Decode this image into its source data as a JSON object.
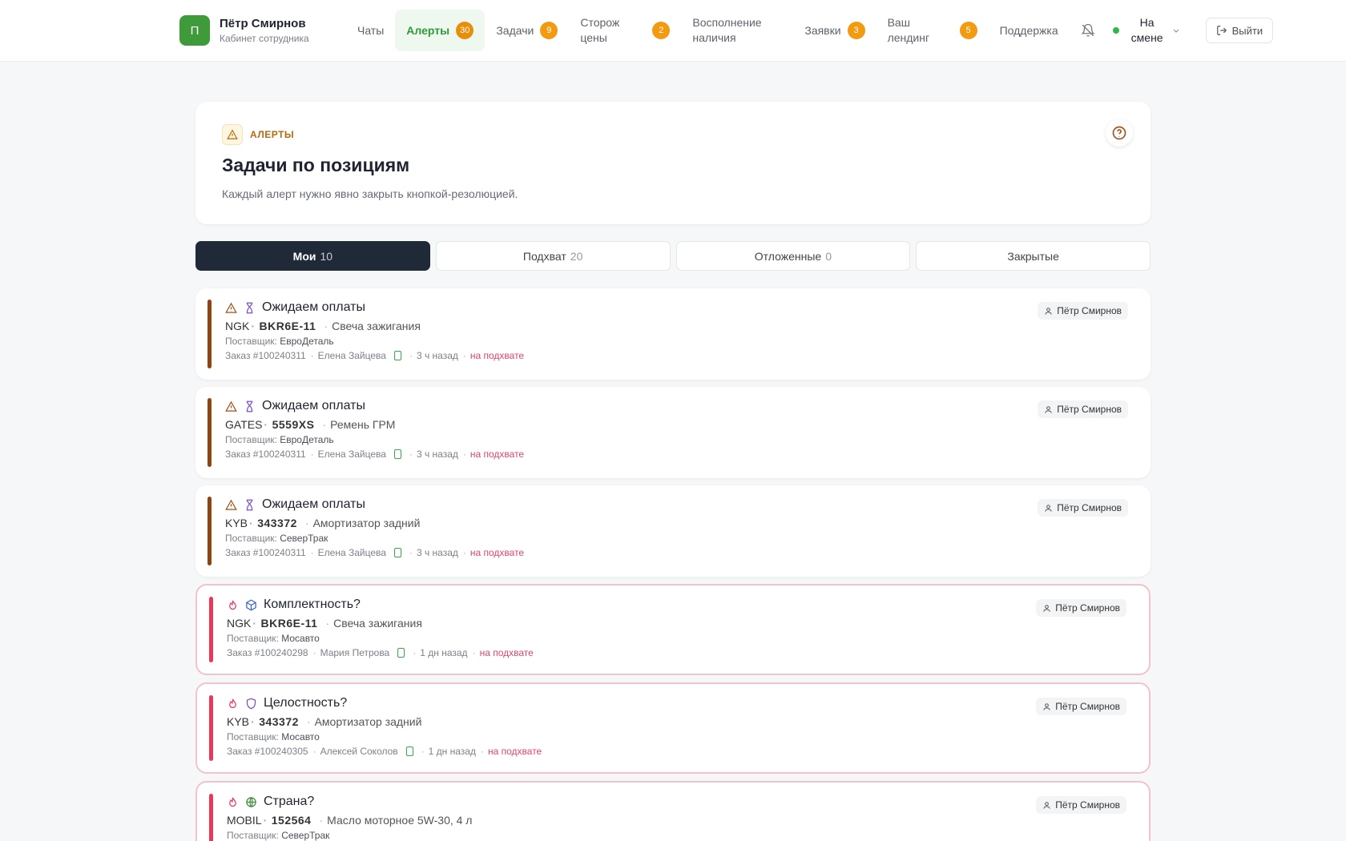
{
  "header": {
    "avatar": "П",
    "name": "Пётр Смирнов",
    "role": "Кабинет сотрудника",
    "nav": [
      {
        "label": "Чаты"
      },
      {
        "label": "Алерты",
        "badge": 30
      },
      {
        "label": "Задачи",
        "badge": 9
      },
      {
        "label": "Сторож цены",
        "badge": 2
      },
      {
        "label": "Восполнение наличия"
      },
      {
        "label": "Заявки",
        "badge": 3
      },
      {
        "label": "Ваш лендинг",
        "badge": 5
      },
      {
        "label": "Поддержка"
      }
    ],
    "status": "На смене",
    "logout": "Выйти"
  },
  "intro": {
    "eyebrow": "АЛЕРТЫ",
    "title": "Задачи по позициям",
    "description": "Каждый алерт нужно явно закрыть кнопкой-резолюцией."
  },
  "tabs": [
    {
      "label": "Мои",
      "count": 10
    },
    {
      "label": "Подхват",
      "count": 20
    },
    {
      "label": "Отложенные",
      "count": 0
    },
    {
      "label": "Закрытые"
    }
  ],
  "alerts": [
    {
      "title": "Ожидаем оплаты",
      "brand": "NGK",
      "sku": "BKR6E-11",
      "name": "Свеча зажигания",
      "supplier_label": "Поставщик:",
      "supplier": "ЕвроДеталь",
      "order": "Заказ #100240311",
      "person": "Елена Зайцева",
      "time": "3 ч назад",
      "status": "на подхвате",
      "assignee": "Пётр Смирнов"
    },
    {
      "title": "Ожидаем оплаты",
      "brand": "GATES",
      "sku": "5559XS",
      "name": "Ремень ГРМ",
      "supplier_label": "Поставщик:",
      "supplier": "ЕвроДеталь",
      "order": "Заказ #100240311",
      "person": "Елена Зайцева",
      "time": "3 ч назад",
      "status": "на подхвате",
      "assignee": "Пётр Смирнов"
    },
    {
      "title": "Ожидаем оплаты",
      "brand": "KYB",
      "sku": "343372",
      "name": "Амортизатор задний",
      "supplier_label": "Поставщик:",
      "supplier": "СеверТрак",
      "order": "Заказ #100240311",
      "person": "Елена Зайцева",
      "time": "3 ч назад",
      "status": "на подхвате",
      "assignee": "Пётр Смирнов"
    },
    {
      "title": "Комплектность?",
      "brand": "NGK",
      "sku": "BKR6E-11",
      "name": "Свеча зажигания",
      "supplier_label": "Поставщик:",
      "supplier": "Мосавто",
      "order": "Заказ #100240298",
      "person": "Мария Петрова",
      "time": "1 дн назад",
      "status": "на подхвате",
      "assignee": "Пётр Смирнов"
    },
    {
      "title": "Целостность?",
      "brand": "KYB",
      "sku": "343372",
      "name": "Амортизатор задний",
      "supplier_label": "Поставщик:",
      "supplier": "Мосавто",
      "order": "Заказ #100240305",
      "person": "Алексей Соколов",
      "time": "1 дн назад",
      "status": "на подхвате",
      "assignee": "Пётр Смирнов"
    },
    {
      "title": "Страна?",
      "brand": "MOBIL",
      "sku": "152564",
      "name": "Масло моторное 5W-30, 4 л",
      "supplier_label": "Поставщик:",
      "supplier": "СеверТрак",
      "assignee": "Пётр Смирнов"
    }
  ]
}
